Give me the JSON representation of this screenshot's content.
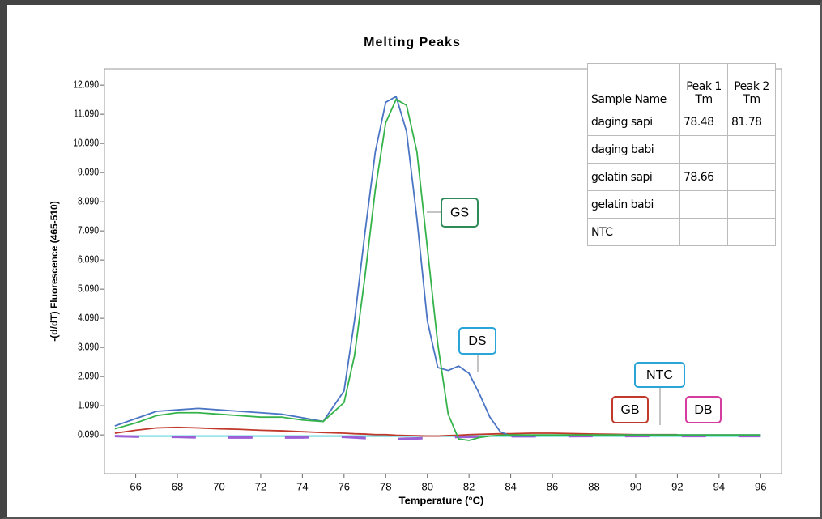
{
  "chart_data": {
    "type": "line",
    "title": "Melting Peaks",
    "xlabel": "Temperature (°C)",
    "ylabel": "-(d/dT) Fluorescence (465-510)",
    "xlim": [
      64.5,
      97
    ],
    "ylim": [
      -1.24,
      12.65
    ],
    "xticks": [
      66,
      68,
      70,
      72,
      74,
      76,
      78,
      80,
      82,
      84,
      86,
      88,
      90,
      92,
      94,
      96
    ],
    "yticks": [
      {
        "value": 0.09,
        "label": "0.090"
      },
      {
        "value": 1.09,
        "label": "1.090"
      },
      {
        "value": 2.09,
        "label": "2.090"
      },
      {
        "value": 3.09,
        "label": "3.090"
      },
      {
        "value": 4.09,
        "label": "4.090"
      },
      {
        "value": 5.09,
        "label": "5.090"
      },
      {
        "value": 6.09,
        "label": "6.090"
      },
      {
        "value": 7.09,
        "label": "7.090"
      },
      {
        "value": 8.09,
        "label": "8.090"
      },
      {
        "value": 9.09,
        "label": "9.090"
      },
      {
        "value": 10.09,
        "label": "10.090"
      },
      {
        "value": 11.09,
        "label": "11.090"
      },
      {
        "value": 12.09,
        "label": "12.090"
      }
    ],
    "x": [
      65,
      66,
      67,
      68,
      69,
      70,
      71,
      72,
      73,
      74,
      75,
      76,
      76.5,
      77,
      77.5,
      78,
      78.5,
      79,
      79.5,
      80,
      80.5,
      81,
      81.5,
      82,
      82.5,
      83,
      83.5,
      84,
      85,
      86,
      88,
      90,
      92,
      94,
      96
    ],
    "series": [
      {
        "name": "NTC",
        "color": "#3ccbd6",
        "annotation_color": "#2aa5d8",
        "dashed": false,
        "values": [
          0.05,
          0.05,
          0.05,
          0.05,
          0.05,
          0.05,
          0.05,
          0.05,
          0.05,
          0.05,
          0.05,
          0.05,
          0.05,
          0.05,
          0.05,
          0.05,
          0.05,
          0.05,
          0.05,
          0.05,
          0.05,
          0.05,
          0.05,
          0.05,
          0.05,
          0.05,
          0.05,
          0.05,
          0.05,
          0.05,
          0.05,
          0.05,
          0.05,
          0.05,
          0.05
        ]
      },
      {
        "name": "DB",
        "color": "#9b5fd6",
        "annotation_color": "#d43c9e",
        "dashed": true,
        "values": [
          0.05,
          0.03,
          0.02,
          0.02,
          0.0,
          0.0,
          0.0,
          0.0,
          0.0,
          0.0,
          0.02,
          0.02,
          0.0,
          -0.02,
          -0.03,
          -0.05,
          -0.05,
          -0.04,
          -0.03,
          -0.02,
          0.0,
          0.0,
          0.02,
          0.02,
          0.03,
          0.03,
          0.03,
          0.04,
          0.04,
          0.04,
          0.05,
          0.05,
          0.05,
          0.05,
          0.05
        ]
      },
      {
        "name": "GB",
        "color": "#c0392b",
        "annotation_color": "#c0392b",
        "dashed": false,
        "values": [
          0.15,
          0.25,
          0.33,
          0.35,
          0.33,
          0.3,
          0.28,
          0.25,
          0.23,
          0.2,
          0.17,
          0.15,
          0.13,
          0.12,
          0.1,
          0.1,
          0.08,
          0.07,
          0.06,
          0.05,
          0.05,
          0.07,
          0.08,
          0.1,
          0.11,
          0.12,
          0.13,
          0.13,
          0.15,
          0.15,
          0.12,
          0.1,
          0.1,
          null,
          null
        ]
      },
      {
        "name": "DS",
        "color": "#4a74c4",
        "annotation_color": "#2aa5d8",
        "dashed": false,
        "values": [
          0.4,
          0.65,
          0.9,
          0.95,
          1.0,
          0.95,
          0.9,
          0.85,
          0.8,
          0.68,
          0.55,
          1.6,
          4.0,
          7.0,
          9.8,
          11.5,
          11.7,
          10.5,
          7.5,
          4.0,
          2.4,
          2.3,
          2.45,
          2.2,
          1.5,
          0.7,
          0.2,
          0.05,
          0.05,
          0.08,
          0.08,
          0.09,
          0.09,
          0.09,
          0.09
        ]
      },
      {
        "name": "GS",
        "color": "#35b34a",
        "annotation_color": "#2e8b57",
        "dashed": false,
        "values": [
          0.3,
          0.5,
          0.75,
          0.85,
          0.85,
          0.8,
          0.75,
          0.7,
          0.7,
          0.6,
          0.55,
          1.2,
          2.8,
          5.5,
          8.5,
          10.8,
          11.6,
          11.4,
          9.8,
          6.5,
          3.2,
          0.8,
          -0.05,
          -0.1,
          0.0,
          0.05,
          0.08,
          0.09,
          0.09,
          0.09,
          0.09,
          0.09,
          0.09,
          0.09,
          0.09
        ]
      }
    ],
    "table": {
      "columns": [
        "Sample Name",
        "Peak 1 Tm",
        "Peak 2 Tm"
      ],
      "rows": [
        [
          "daging sapi",
          78.48,
          81.78
        ],
        [
          "daging babi",
          null,
          null
        ],
        [
          "gelatin sapi",
          78.66,
          null
        ],
        [
          "gelatin babi",
          null,
          null
        ],
        [
          "NTC",
          null,
          null
        ]
      ]
    }
  }
}
